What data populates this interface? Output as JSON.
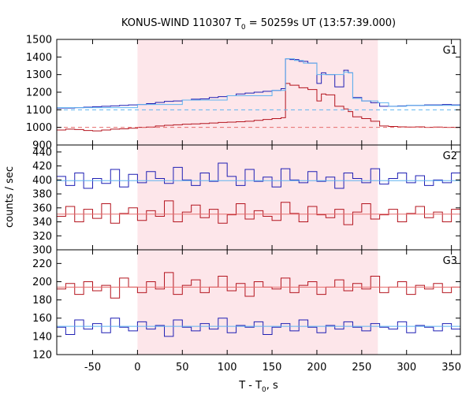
{
  "title": {
    "prefix": "KONUS-WIND 110307 T",
    "subscript": "0",
    "suffix": " = 50259s UT (13:57:39.000)"
  },
  "axes": {
    "ylabel": "counts / sec",
    "xlabel_prefix": "T - T",
    "xlabel_subscript": "0",
    "xlabel_suffix": ", s"
  },
  "colors": {
    "blue": "#1f1fb4",
    "red": "#b4141e",
    "fit": "#5fb4f0",
    "fit_red": "#e66e6e",
    "shade": "#fde6ea"
  },
  "chart_data": {
    "type": "line",
    "title": "KONUS-WIND 110307 T0 = 50259s UT (13:57:39.000)",
    "xlabel": "T - T0, s",
    "ylabel": "counts / sec",
    "xlim": [
      -90,
      360
    ],
    "x_ticks": [
      -50,
      0,
      50,
      100,
      150,
      200,
      250,
      300,
      350
    ],
    "shaded_interval": [
      0,
      268
    ],
    "panels": [
      {
        "label": "G1",
        "ylim": [
          900,
          1500
        ],
        "y_ticks": [
          900,
          1000,
          1100,
          1200,
          1300,
          1400,
          1500
        ],
        "series": [
          {
            "color": "blue",
            "x": [
              -90,
              -80,
              -70,
              -60,
              -50,
              -40,
              -30,
              -20,
              -10,
              0,
              10,
              20,
              30,
              40,
              50,
              60,
              70,
              80,
              90,
              100,
              110,
              120,
              130,
              140,
              150,
              160,
              165,
              170,
              180,
              190,
              200,
              205,
              210,
              220,
              230,
              235,
              240,
              250,
              260,
              270,
              280,
              290,
              300,
              310,
              320,
              330,
              340,
              350,
              360
            ],
            "y": [
              1110,
              1110,
              1112,
              1115,
              1118,
              1120,
              1122,
              1125,
              1128,
              1130,
              1135,
              1142,
              1148,
              1150,
              1155,
              1160,
              1162,
              1170,
              1175,
              1180,
              1190,
              1195,
              1200,
              1205,
              1210,
              1220,
              1390,
              1385,
              1375,
              1365,
              1250,
              1310,
              1300,
              1230,
              1325,
              1310,
              1170,
              1150,
              1140,
              1120,
              1120,
              1122,
              1125,
              1125,
              1128,
              1128,
              1130,
              1128,
              1130
            ]
          },
          {
            "color": "red",
            "x": [
              -90,
              -80,
              -70,
              -60,
              -50,
              -40,
              -30,
              -20,
              -10,
              0,
              10,
              20,
              30,
              40,
              50,
              60,
              70,
              80,
              90,
              100,
              110,
              120,
              130,
              140,
              150,
              160,
              165,
              170,
              180,
              190,
              200,
              205,
              210,
              220,
              230,
              235,
              240,
              250,
              260,
              270,
              280,
              290,
              300,
              310,
              320,
              330,
              340,
              350,
              360
            ],
            "y": [
              985,
              990,
              988,
              982,
              980,
              985,
              990,
              992,
              995,
              1000,
              1002,
              1008,
              1012,
              1015,
              1018,
              1020,
              1022,
              1025,
              1028,
              1030,
              1032,
              1035,
              1040,
              1045,
              1050,
              1055,
              1250,
              1240,
              1225,
              1215,
              1150,
              1190,
              1185,
              1120,
              1105,
              1090,
              1060,
              1050,
              1035,
              1008,
              1005,
              1003,
              1002,
              1003,
              1000,
              1002,
              1000,
              1000,
              1002
            ]
          },
          {
            "color": "fit",
            "x": [
              -90,
              0,
              50,
              100,
              150,
              165,
              175,
              185,
              195,
              200,
              210,
              220,
              230,
              235,
              240,
              250,
              268,
              280,
              300,
              360
            ],
            "y": [
              1112,
              1130,
              1155,
              1180,
              1210,
              1390,
              1380,
              1365,
              1365,
              1300,
              1300,
              1300,
              1315,
              1310,
              1165,
              1150,
              1140,
              1120,
              1125,
              1130
            ]
          },
          {
            "color": "fit",
            "style": "dashed",
            "x": [
              -90,
              360
            ],
            "y": [
              1100,
              1100
            ]
          },
          {
            "color": "fit_red",
            "style": "dashed",
            "x": [
              -90,
              360
            ],
            "y": [
              1000,
              1000
            ]
          }
        ]
      },
      {
        "label": "G2",
        "ylim": [
          300,
          450
        ],
        "y_ticks": [
          300,
          320,
          340,
          360,
          380,
          400,
          420,
          440
        ],
        "series": [
          {
            "color": "blue",
            "x": [
              -90,
              -80,
              -70,
              -60,
              -50,
              -40,
              -30,
              -20,
              -10,
              0,
              10,
              20,
              30,
              40,
              50,
              60,
              70,
              80,
              90,
              100,
              110,
              120,
              130,
              140,
              150,
              160,
              170,
              180,
              190,
              200,
              210,
              220,
              230,
              240,
              250,
              260,
              270,
              280,
              290,
              300,
              310,
              320,
              330,
              340,
              350,
              360
            ],
            "y": [
              405,
              392,
              410,
              388,
              402,
              395,
              415,
              390,
              408,
              396,
              412,
              402,
              395,
              418,
              400,
              392,
              410,
              398,
              424,
              405,
              392,
              415,
              398,
              404,
              390,
              416,
              400,
              396,
              412,
              398,
              404,
              388,
              410,
              402,
              396,
              416,
              394,
              402,
              410,
              396,
              406,
              392,
              400,
              396,
              410,
              398
            ]
          },
          {
            "color": "red",
            "x": [
              -90,
              -80,
              -70,
              -60,
              -50,
              -40,
              -30,
              -20,
              -10,
              0,
              10,
              20,
              30,
              40,
              50,
              60,
              70,
              80,
              90,
              100,
              110,
              120,
              130,
              140,
              150,
              160,
              170,
              180,
              190,
              200,
              210,
              220,
              230,
              240,
              250,
              260,
              270,
              280,
              290,
              300,
              310,
              320,
              330,
              340,
              350,
              360
            ],
            "y": [
              348,
              362,
              340,
              358,
              345,
              366,
              338,
              352,
              360,
              342,
              356,
              348,
              370,
              340,
              354,
              364,
              346,
              358,
              338,
              350,
              366,
              344,
              356,
              348,
              342,
              368,
              352,
              340,
              362,
              350,
              346,
              358,
              336,
              354,
              366,
              344,
              350,
              358,
              340,
              352,
              362,
              346,
              354,
              340,
              358,
              350
            ]
          },
          {
            "color": "fit",
            "x": [
              -90,
              360
            ],
            "y": [
              399,
              399
            ]
          },
          {
            "color": "fit_red",
            "x": [
              -90,
              360
            ],
            "y": [
              351,
              351
            ]
          }
        ]
      },
      {
        "label": "G3",
        "ylim": [
          120,
          235
        ],
        "y_ticks": [
          120,
          140,
          160,
          180,
          200,
          220
        ],
        "series": [
          {
            "color": "red",
            "x": [
              -90,
              -80,
              -70,
              -60,
              -50,
              -40,
              -30,
              -20,
              -10,
              0,
              10,
              20,
              30,
              40,
              50,
              60,
              70,
              80,
              90,
              100,
              110,
              120,
              130,
              140,
              150,
              160,
              170,
              180,
              190,
              200,
              210,
              220,
              230,
              240,
              250,
              260,
              270,
              280,
              290,
              300,
              310,
              320,
              330,
              340,
              350,
              360
            ],
            "y": [
              192,
              198,
              186,
              200,
              190,
              196,
              182,
              204,
              194,
              188,
              200,
              192,
              210,
              186,
              196,
              202,
              188,
              194,
              206,
              190,
              198,
              184,
              200,
              194,
              192,
              204,
              188,
              196,
              200,
              186,
              194,
              202,
              190,
              198,
              192,
              206,
              188,
              194,
              200,
              186,
              196,
              192,
              198,
              188,
              194,
              190
            ]
          },
          {
            "color": "blue",
            "x": [
              -90,
              -80,
              -70,
              -60,
              -50,
              -40,
              -30,
              -20,
              -10,
              0,
              10,
              20,
              30,
              40,
              50,
              60,
              70,
              80,
              90,
              100,
              110,
              120,
              130,
              140,
              150,
              160,
              170,
              180,
              190,
              200,
              210,
              220,
              230,
              240,
              250,
              260,
              270,
              280,
              290,
              300,
              310,
              320,
              330,
              340,
              350,
              360
            ],
            "y": [
              150,
              142,
              158,
              148,
              154,
              144,
              160,
              150,
              146,
              156,
              148,
              152,
              140,
              158,
              150,
              146,
              154,
              148,
              160,
              144,
              152,
              150,
              156,
              142,
              150,
              154,
              146,
              158,
              150,
              144,
              152,
              148,
              156,
              150,
              146,
              154,
              150,
              148,
              156,
              144,
              152,
              150,
              146,
              154,
              148,
              152
            ]
          },
          {
            "color": "fit_red",
            "x": [
              -90,
              360
            ],
            "y": [
              194,
              194
            ]
          },
          {
            "color": "fit",
            "x": [
              -90,
              360
            ],
            "y": [
              151,
              151
            ]
          }
        ]
      }
    ]
  }
}
